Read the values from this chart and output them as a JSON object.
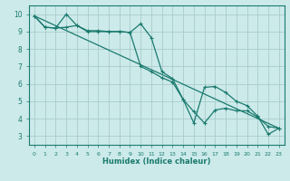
{
  "xlabel": "Humidex (Indice chaleur)",
  "bg_color": "#cceaea",
  "grid_color": "#aacccc",
  "line_color": "#1a7a6e",
  "xlim": [
    -0.5,
    23.5
  ],
  "ylim": [
    2.5,
    10.5
  ],
  "xticks": [
    0,
    1,
    2,
    3,
    4,
    5,
    6,
    7,
    8,
    9,
    10,
    11,
    12,
    13,
    14,
    15,
    16,
    17,
    18,
    19,
    20,
    21,
    22,
    23
  ],
  "yticks": [
    3,
    4,
    5,
    6,
    7,
    8,
    9,
    10
  ],
  "curve1_x": [
    0,
    1,
    2,
    3,
    4,
    5,
    6,
    7,
    8,
    9,
    10,
    11,
    12,
    13,
    14,
    15,
    16,
    17,
    18,
    19,
    20,
    21,
    22,
    23
  ],
  "curve1_y": [
    9.9,
    9.25,
    9.2,
    10.0,
    9.35,
    9.05,
    9.05,
    9.0,
    9.0,
    8.95,
    9.45,
    8.65,
    6.7,
    6.3,
    5.1,
    4.4,
    3.75,
    4.5,
    4.6,
    4.45,
    4.45,
    4.1,
    3.55,
    3.45
  ],
  "curve2_x": [
    0,
    1,
    2,
    3,
    4,
    5,
    6,
    7,
    8,
    9,
    10,
    11,
    12,
    13,
    14,
    15,
    16,
    17,
    18,
    19,
    20,
    21,
    22,
    23
  ],
  "curve2_y": [
    9.9,
    9.25,
    9.2,
    9.25,
    9.35,
    9.0,
    9.0,
    9.0,
    9.0,
    8.95,
    7.0,
    6.7,
    6.35,
    6.1,
    5.1,
    3.75,
    5.8,
    5.85,
    5.5,
    5.0,
    4.75,
    4.15,
    3.1,
    3.45
  ],
  "trend_x": [
    0,
    23
  ],
  "trend_y": [
    9.9,
    3.45
  ]
}
